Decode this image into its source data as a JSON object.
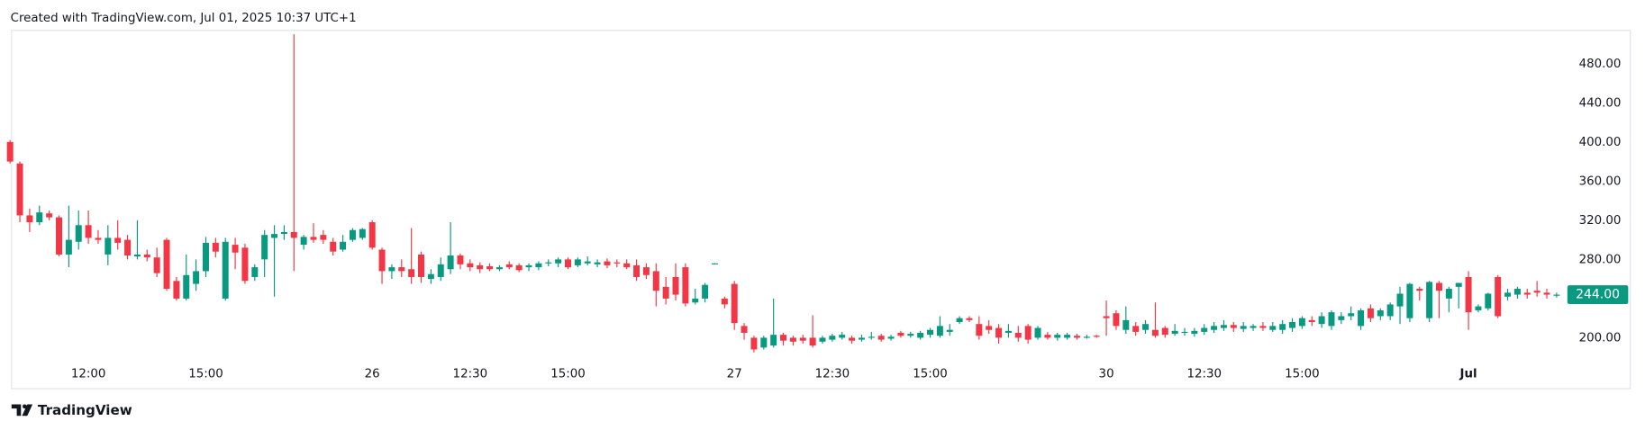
{
  "header": "Created with TradingView.com, Jul 01, 2025 10:37 UTC+1",
  "footer": "TradingView",
  "chart_data": {
    "type": "candlestick",
    "up_color": "#089981",
    "down_color": "#f23645",
    "grid": false,
    "categories": [
      null,
      null,
      null,
      null,
      null,
      null,
      null,
      null,
      "12:00",
      null,
      null,
      null,
      null,
      null,
      null,
      null,
      null,
      null,
      null,
      null,
      "15:00",
      null,
      null,
      null,
      null,
      null,
      null,
      null,
      null,
      null,
      null,
      null,
      null,
      null,
      null,
      null,
      null,
      "26",
      null,
      null,
      null,
      null,
      null,
      null,
      null,
      null,
      null,
      "12:30",
      null,
      null,
      null,
      null,
      null,
      null,
      null,
      null,
      null,
      "15:00",
      null,
      null,
      null,
      null,
      null,
      null,
      null,
      null,
      null,
      null,
      null,
      null,
      null,
      null,
      null,
      null,
      "27",
      null,
      null,
      null,
      null,
      null,
      null,
      null,
      null,
      null,
      "12:30",
      null,
      null,
      null,
      null,
      null,
      null,
      null,
      null,
      null,
      "15:00",
      null,
      null,
      null,
      null,
      null,
      null,
      null,
      null,
      null,
      null,
      null,
      null,
      null,
      null,
      null,
      null,
      null,
      "30",
      null,
      null,
      null,
      null,
      null,
      null,
      null,
      null,
      null,
      "12:30",
      null,
      null,
      null,
      null,
      null,
      null,
      null,
      null,
      null,
      "15:00",
      null,
      null,
      null,
      null,
      null,
      null,
      null,
      null,
      null,
      null,
      null,
      null,
      null,
      null,
      null,
      null,
      "Jul",
      null,
      null,
      null,
      null,
      null,
      null,
      null,
      null,
      null
    ],
    "open": [
      400,
      378,
      325,
      318,
      327,
      323,
      285,
      298,
      315,
      302,
      285,
      302,
      300,
      283,
      285,
      282,
      300,
      258,
      240,
      255,
      268,
      297,
      240,
      295,
      292,
      262,
      280,
      302,
      306,
      308,
      295,
      303,
      305,
      298,
      290,
      300,
      302,
      318,
      290,
      268,
      272,
      270,
      285,
      260,
      262,
      270,
      284,
      276,
      274,
      273,
      270,
      275,
      274,
      272,
      272,
      276,
      276,
      280,
      274,
      276,
      275,
      278,
      277,
      276,
      274,
      272,
      268,
      252,
      262,
      272,
      236,
      240,
      275,
      240,
      255,
      212,
      200,
      190,
      192,
      203,
      200,
      200,
      200,
      196,
      198,
      200,
      200,
      198,
      200,
      202,
      199,
      205,
      202,
      200,
      203,
      202,
      206,
      216,
      220,
      214,
      212,
      210,
      205,
      205,
      212,
      200,
      203,
      200,
      200,
      202,
      200,
      202,
      222,
      225,
      208,
      212,
      208,
      208,
      210,
      204,
      205,
      204,
      206,
      208,
      210,
      213,
      209,
      210,
      212,
      208,
      208,
      210,
      212,
      218,
      214,
      212,
      218,
      222,
      212,
      230,
      222,
      222,
      232,
      220,
      250,
      220,
      256,
      240,
      252,
      262,
      228,
      230,
      262,
      242,
      244,
      246,
      248,
      246,
      243
    ],
    "high": [
      402,
      380,
      332,
      335,
      330,
      325,
      335,
      330,
      330,
      310,
      315,
      320,
      305,
      320,
      290,
      292,
      302,
      262,
      285,
      280,
      303,
      302,
      302,
      302,
      296,
      275,
      310,
      315,
      315,
      510,
      305,
      317,
      310,
      302,
      305,
      312,
      312,
      320,
      292,
      275,
      280,
      312,
      288,
      270,
      282,
      318,
      286,
      280,
      277,
      276,
      274,
      278,
      276,
      276,
      278,
      280,
      282,
      282,
      282,
      283,
      280,
      281,
      280,
      280,
      280,
      276,
      276,
      262,
      276,
      276,
      250,
      256,
      276,
      242,
      258,
      215,
      202,
      202,
      240,
      205,
      202,
      203,
      223,
      202,
      204,
      206,
      202,
      203,
      206,
      204,
      203,
      207,
      206,
      207,
      210,
      222,
      214,
      222,
      222,
      222,
      218,
      214,
      214,
      212,
      214,
      212,
      206,
      205,
      205,
      204,
      203,
      203,
      238,
      228,
      232,
      216,
      218,
      236,
      212,
      214,
      210,
      210,
      214,
      216,
      218,
      216,
      216,
      214,
      216,
      216,
      218,
      220,
      222,
      222,
      226,
      228,
      226,
      232,
      230,
      234,
      230,
      236,
      252,
      256,
      252,
      258,
      258,
      252,
      256,
      268,
      234,
      246,
      264,
      250,
      252,
      250,
      258,
      250,
      246
    ],
    "low": [
      378,
      318,
      308,
      315,
      320,
      283,
      272,
      290,
      296,
      296,
      274,
      290,
      280,
      280,
      278,
      262,
      248,
      238,
      238,
      248,
      262,
      282,
      238,
      270,
      255,
      258,
      262,
      242,
      300,
      268,
      290,
      297,
      296,
      284,
      288,
      298,
      300,
      290,
      255,
      260,
      262,
      255,
      256,
      255,
      258,
      265,
      270,
      268,
      266,
      268,
      268,
      270,
      267,
      268,
      269,
      273,
      272,
      270,
      272,
      274,
      272,
      271,
      272,
      270,
      258,
      260,
      232,
      234,
      238,
      232,
      234,
      236,
      275,
      230,
      208,
      198,
      185,
      188,
      190,
      192,
      192,
      194,
      190,
      194,
      196,
      198,
      194,
      196,
      198,
      196,
      197,
      200,
      200,
      198,
      200,
      200,
      202,
      214,
      216,
      198,
      204,
      194,
      200,
      196,
      194,
      198,
      198,
      197,
      198,
      198,
      199,
      200,
      202,
      208,
      204,
      202,
      204,
      200,
      200,
      202,
      202,
      201,
      203,
      205,
      207,
      206,
      206,
      207,
      207,
      206,
      204,
      206,
      209,
      212,
      210,
      208,
      214,
      218,
      208,
      216,
      218,
      218,
      214,
      216,
      238,
      216,
      220,
      226,
      230,
      208,
      226,
      228,
      220,
      238,
      240,
      240,
      242,
      240,
      241
    ],
    "close": [
      380,
      325,
      318,
      328,
      323,
      285,
      300,
      315,
      302,
      300,
      302,
      297,
      284,
      285,
      282,
      266,
      250,
      240,
      264,
      268,
      297,
      288,
      298,
      287,
      258,
      272,
      305,
      306,
      308,
      302,
      303,
      300,
      300,
      288,
      298,
      310,
      311,
      292,
      268,
      272,
      268,
      262,
      262,
      265,
      275,
      284,
      275,
      272,
      270,
      270,
      272,
      272,
      269,
      274,
      276,
      277,
      280,
      272,
      280,
      278,
      277,
      274,
      276,
      272,
      262,
      264,
      248,
      240,
      244,
      235,
      240,
      254,
      276,
      234,
      215,
      205,
      188,
      200,
      203,
      197,
      196,
      197,
      192,
      200,
      202,
      203,
      197,
      200,
      201,
      198,
      201,
      202,
      204,
      205,
      208,
      212,
      208,
      220,
      218,
      202,
      208,
      200,
      207,
      200,
      198,
      210,
      200,
      203,
      203,
      200,
      201,
      201,
      220,
      212,
      218,
      206,
      214,
      202,
      203,
      207,
      206,
      207,
      210,
      212,
      213,
      210,
      212,
      212,
      210,
      212,
      214,
      216,
      220,
      216,
      222,
      226,
      222,
      225,
      228,
      220,
      228,
      234,
      245,
      255,
      248,
      257,
      248,
      250,
      256,
      226,
      232,
      245,
      222,
      246,
      250,
      244,
      246,
      244,
      244
    ],
    "ylim": [
      148,
      514
    ],
    "yticks": [
      {
        "value": 200,
        "label": "200.00"
      },
      {
        "value": 240,
        "label": "240.00"
      },
      {
        "value": 280,
        "label": "280.00"
      },
      {
        "value": 320,
        "label": "320.00"
      },
      {
        "value": 360,
        "label": "360.00"
      },
      {
        "value": 400,
        "label": "400.00"
      },
      {
        "value": 440,
        "label": "440.00"
      },
      {
        "value": 480,
        "label": "480.00"
      }
    ],
    "last_price": {
      "value": 244,
      "label": "244.00"
    }
  }
}
